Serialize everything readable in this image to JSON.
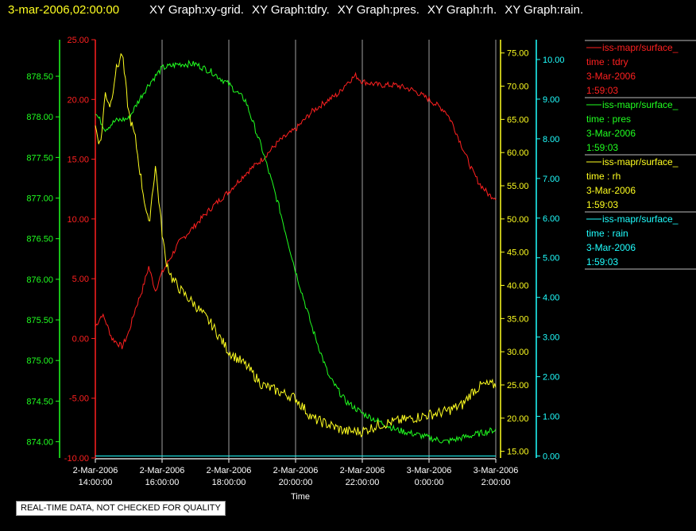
{
  "header": {
    "timestamp": "3-mar-2006,02:00:00",
    "graph_titles": [
      "XY Graph:xy-grid.",
      "XY Graph:tdry.",
      "XY Graph:pres.",
      "XY Graph:rh.",
      "XY Graph:rain."
    ]
  },
  "colors": {
    "tdry": "#ff2020",
    "pres": "#20ff20",
    "rh": "#ffff20",
    "rain": "#20ffff",
    "timestamp": "#ffff20",
    "grid": "#c8c8c8",
    "background": "#000000",
    "text": "#ffffff"
  },
  "legend": [
    {
      "source": "iss-mapr/surface_",
      "line": "time : tdry",
      "date": "3-Mar-2006",
      "time": "1:59:03",
      "color": "#ff2020"
    },
    {
      "source": "iss-mapr/surface_",
      "line": "time : pres",
      "date": "3-Mar-2006",
      "time": "1:59:03",
      "color": "#20ff20"
    },
    {
      "source": "iss-mapr/surface_",
      "line": "time : rh",
      "date": "3-Mar-2006",
      "time": "1:59:03",
      "color": "#ffff20"
    },
    {
      "source": "iss-mapr/surface_",
      "line": "time : rain",
      "date": "3-Mar-2006",
      "time": "1:59:03",
      "color": "#20ffff"
    }
  ],
  "disclaimer": "REAL-TIME DATA, NOT CHECKED FOR QUALITY",
  "chart_data": {
    "type": "line",
    "title": "",
    "xlabel": "Time",
    "x_range": [
      "2-Mar-2006 14:00:00",
      "3-Mar-2006 2:00:00"
    ],
    "x_ticks": [
      {
        "date": "2-Mar-2006",
        "time": "14:00:00"
      },
      {
        "date": "2-Mar-2006",
        "time": "16:00:00"
      },
      {
        "date": "2-Mar-2006",
        "time": "18:00:00"
      },
      {
        "date": "2-Mar-2006",
        "time": "20:00:00"
      },
      {
        "date": "2-Mar-2006",
        "time": "22:00:00"
      },
      {
        "date": "3-Mar-2006",
        "time": "0:00:00"
      },
      {
        "date": "3-Mar-2006",
        "time": "2:00:00"
      }
    ],
    "grid": true,
    "legend_position": "right",
    "axes": {
      "pres": {
        "min": 873.8,
        "max": 878.95,
        "ticks": [
          "874.00",
          "874.50",
          "875.00",
          "875.50",
          "876.00",
          "876.50",
          "877.00",
          "877.50",
          "878.00",
          "878.50"
        ]
      },
      "tdry": {
        "min": -10,
        "max": 25,
        "ticks": [
          "-10.00",
          "-5.00",
          "0.00",
          "5.00",
          "10.00",
          "15.00",
          "20.00",
          "25.00"
        ]
      },
      "rh": {
        "min": 14,
        "max": 77,
        "ticks": [
          "15.00",
          "20.00",
          "25.00",
          "30.00",
          "35.00",
          "40.00",
          "45.00",
          "50.00",
          "55.00",
          "60.00",
          "65.00",
          "70.00",
          "75.00"
        ]
      },
      "rain": {
        "min": -0.05,
        "max": 10.5,
        "ticks": [
          "0.00",
          "1.00",
          "2.00",
          "3.00",
          "4.00",
          "5.00",
          "6.00",
          "7.00",
          "8.00",
          "9.00",
          "10.00"
        ]
      }
    },
    "series": [
      {
        "key": "tdry",
        "x_hours": [
          0,
          0.2,
          0.3,
          0.5,
          0.8,
          1,
          1.2,
          1.4,
          1.6,
          1.8,
          1.9,
          2,
          2.2,
          2.5,
          3,
          3.5,
          4,
          4.5,
          5,
          5.5,
          6,
          6.5,
          7,
          7.3,
          7.5,
          7.8,
          8,
          8.5,
          9,
          9.5,
          9.7,
          10,
          10.5,
          10.7,
          11,
          11.3,
          11.5,
          11.8,
          12
        ],
        "values": [
          1,
          2,
          1.5,
          0,
          -0.7,
          0.5,
          2.5,
          4,
          6,
          4,
          4.8,
          5.5,
          6.5,
          8,
          9.5,
          11,
          12.3,
          13.8,
          15,
          16.5,
          17.5,
          19,
          20,
          20.5,
          21.3,
          22,
          21.5,
          21.2,
          21.2,
          20.8,
          20.5,
          20,
          19,
          18,
          16,
          14,
          13,
          12,
          11.8
        ]
      },
      {
        "key": "pres",
        "x_hours": [
          0,
          0.3,
          0.6,
          1,
          1.3,
          1.6,
          2,
          2.5,
          3,
          3.5,
          4,
          4.5,
          5,
          5.5,
          6,
          6.5,
          7,
          7.5,
          8,
          8.5,
          9,
          9.5,
          10,
          10.5,
          11,
          11.5,
          12
        ],
        "values": [
          878.05,
          877.85,
          877.95,
          877.98,
          878.2,
          878.4,
          878.6,
          878.65,
          878.65,
          878.55,
          878.4,
          878.2,
          877.6,
          876.9,
          876.1,
          875.4,
          874.8,
          874.5,
          874.35,
          874.25,
          874.15,
          874.1,
          874.05,
          874,
          874.05,
          874.1,
          874.15
        ]
      },
      {
        "key": "rh",
        "x_hours": [
          0,
          0.15,
          0.3,
          0.45,
          0.6,
          0.8,
          1,
          1.2,
          1.4,
          1.6,
          1.8,
          1.9,
          2,
          2.1,
          2.3,
          2.6,
          3,
          3.5,
          4,
          4.5,
          5,
          5.5,
          6,
          6.5,
          7,
          7.5,
          8,
          8.5,
          9,
          9.5,
          10,
          10.5,
          11,
          11.3,
          11.6,
          12
        ],
        "values": [
          64,
          61,
          69,
          67,
          72,
          75,
          66,
          62,
          55,
          49,
          58,
          53,
          48,
          44,
          41,
          39,
          37,
          34,
          30,
          28,
          25,
          24,
          23,
          20,
          19,
          18,
          18,
          19,
          19.5,
          20,
          20.5,
          21,
          22,
          24,
          25,
          25
        ]
      },
      {
        "key": "rain",
        "x_hours": [
          0,
          12
        ],
        "values": [
          0,
          0
        ]
      }
    ]
  }
}
